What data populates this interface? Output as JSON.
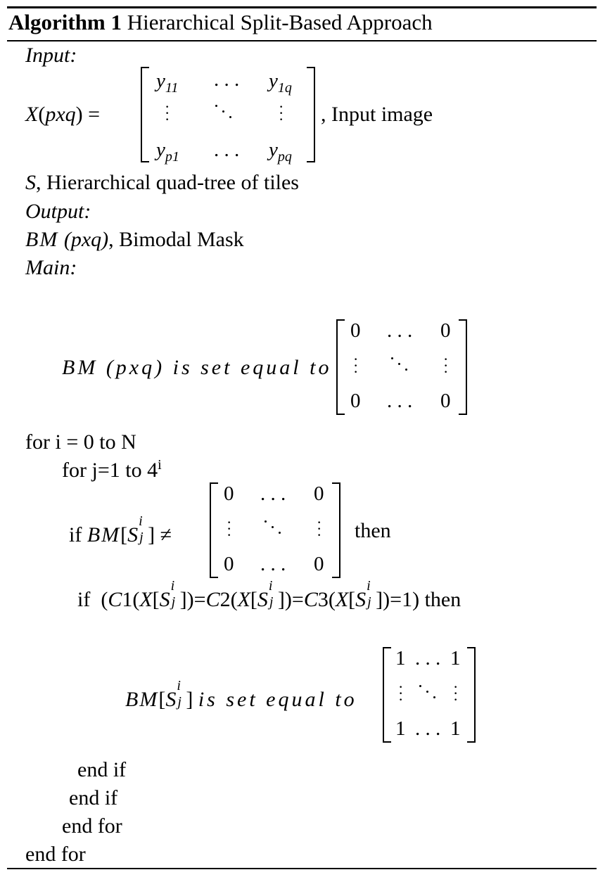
{
  "algorithm": {
    "label": "Algorithm 1",
    "title": "Hierarchical Split-Based Approach"
  },
  "input": {
    "heading": "Input:",
    "matrix_lhs": "X(pxq) =",
    "matrix": [
      [
        "y11",
        "...",
        "y1q"
      ],
      [
        "⋮",
        "⋱",
        "⋮"
      ],
      [
        "yp1",
        "...",
        "ypq"
      ]
    ],
    "image_desc": ", Input image",
    "s_var": "S",
    "s_desc": ", Hierarchical  quad-tree of tiles"
  },
  "output": {
    "heading": "Output:",
    "bm": "BM",
    "bm_dims": "(pxq)",
    "bm_desc": ", Bimodal Mask"
  },
  "main": {
    "heading": "Main:",
    "init_lhs": "BM (pxq)",
    "init_op": "is set equal to",
    "zero": "0",
    "one": "1",
    "hdots": "...",
    "for_i": "for i = 0 to N",
    "for_j_prefix": "for j=1 to 4",
    "for_j_exp": "i",
    "if1_prefix": "if",
    "if1_then": "then",
    "if2_prefix": "if",
    "if2_expr": "(C1(X[S",
    "if2_then": "then",
    "assign_op": "is set equal to",
    "end_if_inner": "end if",
    "end_if_outer": "end if",
    "end_for_inner": "end for",
    "end_for_outer": "end for"
  }
}
